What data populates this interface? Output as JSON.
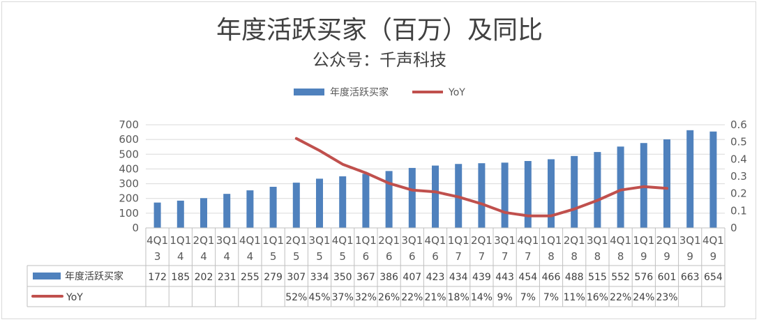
{
  "chart_data": {
    "type": "bar",
    "title": "年度活跃买家（百万）及同比",
    "subtitle": "公众号：千声科技",
    "categories": [
      "4Q13",
      "1Q14",
      "2Q14",
      "3Q14",
      "4Q14",
      "1Q15",
      "2Q15",
      "3Q15",
      "4Q15",
      "1Q16",
      "2Q16",
      "3Q16",
      "4Q16",
      "1Q17",
      "2Q17",
      "3Q17",
      "4Q17",
      "1Q18",
      "2Q18",
      "3Q18",
      "4Q18",
      "1Q19",
      "2Q19",
      "3Q19",
      "4Q19"
    ],
    "category_labels": [
      [
        "4Q1",
        "3"
      ],
      [
        "1Q1",
        "4"
      ],
      [
        "2Q1",
        "4"
      ],
      [
        "3Q1",
        "4"
      ],
      [
        "4Q1",
        "4"
      ],
      [
        "1Q1",
        "5"
      ],
      [
        "2Q1",
        "5"
      ],
      [
        "3Q1",
        "5"
      ],
      [
        "4Q1",
        "5"
      ],
      [
        "1Q1",
        "6"
      ],
      [
        "2Q1",
        "6"
      ],
      [
        "3Q1",
        "6"
      ],
      [
        "4Q1",
        "6"
      ],
      [
        "1Q1",
        "7"
      ],
      [
        "2Q1",
        "7"
      ],
      [
        "3Q1",
        "7"
      ],
      [
        "4Q1",
        "7"
      ],
      [
        "1Q1",
        "8"
      ],
      [
        "2Q1",
        "8"
      ],
      [
        "3Q1",
        "8"
      ],
      [
        "4Q1",
        "8"
      ],
      [
        "1Q1",
        "9"
      ],
      [
        "2Q1",
        "9"
      ],
      [
        "3Q1",
        "9"
      ],
      [
        "4Q1",
        "9"
      ]
    ],
    "series": [
      {
        "name": "年度活跃买家",
        "kind": "bar",
        "axis": "left",
        "color": "#4f81bd",
        "values": [
          172,
          185,
          202,
          231,
          255,
          279,
          307,
          334,
          350,
          367,
          386,
          407,
          423,
          434,
          439,
          443,
          454,
          466,
          488,
          515,
          552,
          576,
          601,
          663,
          654
        ]
      },
      {
        "name": "YoY",
        "kind": "line",
        "axis": "right",
        "color": "#c0504d",
        "values": [
          null,
          null,
          null,
          null,
          null,
          null,
          0.52,
          0.45,
          0.37,
          0.32,
          0.26,
          0.22,
          0.21,
          0.18,
          0.14,
          0.09,
          0.07,
          0.07,
          0.11,
          0.16,
          0.22,
          0.24,
          0.23,
          null,
          null
        ],
        "labels": [
          "",
          "",
          "",
          "",
          "",
          "",
          "52%",
          "45%",
          "37%",
          "32%",
          "26%",
          "22%",
          "21%",
          "18%",
          "14%",
          "9%",
          "7%",
          "7%",
          "11%",
          "16%",
          "22%",
          "24%",
          "23%",
          "",
          ""
        ]
      }
    ],
    "y_left": {
      "lim": [
        0,
        700
      ],
      "ticks": [
        "0",
        "100",
        "200",
        "300",
        "400",
        "500",
        "600",
        "700"
      ]
    },
    "y_right": {
      "lim": [
        0,
        0.6
      ],
      "ticks": [
        "0",
        "0.1",
        "0.2",
        "0.3",
        "0.4",
        "0.5",
        "0.6"
      ]
    },
    "grid": true,
    "legend_position": "top",
    "data_table": true
  }
}
